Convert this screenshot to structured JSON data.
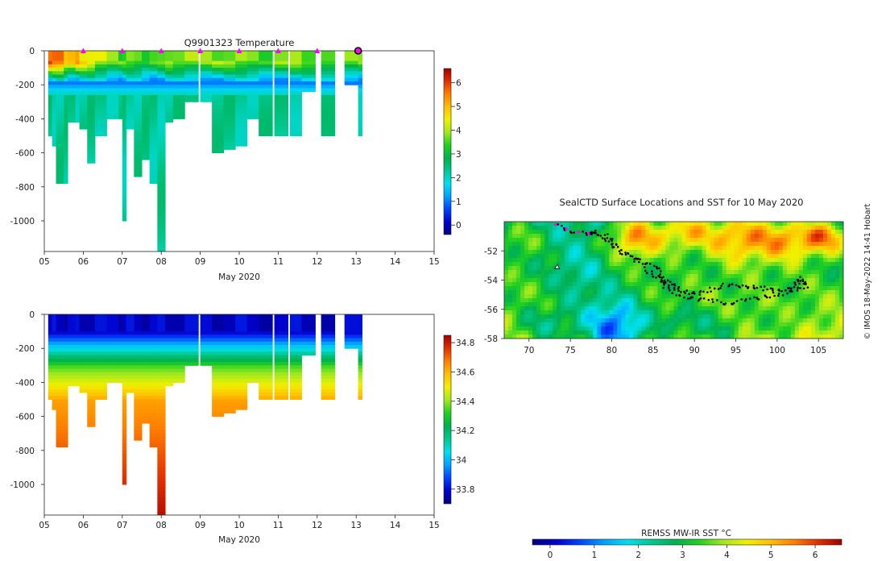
{
  "temperature_panel": {
    "title": "Q9901323  Temperature",
    "xlabel": "May 2020",
    "x_ticks": [
      "05",
      "06",
      "07",
      "08",
      "09",
      "10",
      "11",
      "12",
      "13",
      "14",
      "15"
    ],
    "y_ticks": [
      "0",
      "-200",
      "-400",
      "-600",
      "-800",
      "-1000"
    ],
    "colorbar_ticks": [
      "0",
      "1",
      "2",
      "3",
      "4",
      "5",
      "6"
    ]
  },
  "salinity_panel": {
    "xlabel": "May 2020",
    "x_ticks": [
      "05",
      "06",
      "07",
      "08",
      "09",
      "10",
      "11",
      "12",
      "13",
      "14",
      "15"
    ],
    "y_ticks": [
      "0",
      "-200",
      "-400",
      "-600",
      "-800",
      "-1000"
    ],
    "colorbar_ticks": [
      "33.8",
      "34",
      "34.2",
      "34.4",
      "34.6",
      "34.8"
    ]
  },
  "map_panel": {
    "title": "SealCTD Surface Locations and SST for 10 May 2020",
    "x_ticks": [
      "70",
      "75",
      "80",
      "85",
      "90",
      "95",
      "100",
      "105"
    ],
    "y_ticks": [
      "-52",
      "-54",
      "-56",
      "-58"
    ],
    "colorbar_label": "REMSS MW-IR SST °C",
    "colorbar_ticks": [
      "0",
      "1",
      "2",
      "3",
      "4",
      "5",
      "6"
    ]
  },
  "credit": "© IMOS 18-May-2022 14:41 Hobart",
  "colors": {
    "colormap": [
      "#00007f",
      "#0000cd",
      "#0044ff",
      "#00a0ff",
      "#00e0f0",
      "#00c890",
      "#00b050",
      "#20d020",
      "#a0e820",
      "#f0f000",
      "#ffc000",
      "#ff8000",
      "#e03000",
      "#a00000"
    ],
    "surface_marker": "#ff00ff",
    "track": "#000000"
  },
  "chart_data": [
    {
      "type": "heatmap",
      "title": "Q9901323  Temperature",
      "xlabel": "May 2020",
      "ylabel": "",
      "xlim": [
        5,
        15
      ],
      "ylim": [
        -1180,
        0
      ],
      "clim": [
        -0.4,
        6.6
      ],
      "surface_markers_day": [
        6,
        7,
        8,
        9,
        10,
        11,
        12
      ],
      "profiles": [
        {
          "day": 5.1,
          "max_depth": -500,
          "surf": 5.6
        },
        {
          "day": 5.2,
          "max_depth": -560,
          "surf": 5.4
        },
        {
          "day": 5.3,
          "max_depth": -780,
          "surf": 5.8
        },
        {
          "day": 5.5,
          "max_depth": -780,
          "surf": 5.2
        },
        {
          "day": 5.6,
          "max_depth": -410,
          "surf": 4.9
        },
        {
          "day": 5.8,
          "max_depth": -410,
          "surf": 5.0
        },
        {
          "day": 5.9,
          "max_depth": -460,
          "surf": 4.6
        },
        {
          "day": 6.1,
          "max_depth": -660,
          "surf": 4.6
        },
        {
          "day": 6.3,
          "max_depth": -500,
          "surf": 4.2
        },
        {
          "day": 6.6,
          "max_depth": -400,
          "surf": 3.8
        },
        {
          "day": 6.9,
          "max_depth": -400,
          "surf": 3.5
        },
        {
          "day": 7.0,
          "max_depth": -1000,
          "surf": 3.4
        },
        {
          "day": 7.1,
          "max_depth": -450,
          "surf": 3.5
        },
        {
          "day": 7.3,
          "max_depth": -740,
          "surf": 3.7
        },
        {
          "day": 7.5,
          "max_depth": -630,
          "surf": 3.5
        },
        {
          "day": 7.7,
          "max_depth": -780,
          "surf": 3.4
        },
        {
          "day": 7.9,
          "max_depth": -1180,
          "surf": 3.3
        },
        {
          "day": 8.1,
          "max_depth": -420,
          "surf": 3.8
        },
        {
          "day": 8.3,
          "max_depth": -400,
          "surf": 3.9
        },
        {
          "day": 8.6,
          "max_depth": -300,
          "surf": 3.9
        },
        {
          "day": 9.0,
          "max_depth": -300,
          "surf": 3.8
        },
        {
          "day": 9.3,
          "max_depth": -600,
          "surf": 3.8
        },
        {
          "day": 9.6,
          "max_depth": -580,
          "surf": 3.7
        },
        {
          "day": 9.9,
          "max_depth": -550,
          "surf": 3.7
        },
        {
          "day": 10.2,
          "max_depth": -400,
          "surf": 3.8
        },
        {
          "day": 10.5,
          "max_depth": -500,
          "surf": 3.6
        },
        {
          "day": 10.9,
          "max_depth": -500,
          "surf": 3.7
        },
        {
          "day": 11.3,
          "max_depth": -500,
          "surf": 3.7
        },
        {
          "day": 11.6,
          "max_depth": -240,
          "surf": 3.6
        },
        {
          "day": 12.1,
          "max_depth": -500,
          "surf": 3.8
        },
        {
          "day": 12.7,
          "max_depth": -200,
          "surf": 3.7
        },
        {
          "day": 13.05,
          "max_depth": -500,
          "surf": 3.6
        }
      ]
    },
    {
      "type": "heatmap",
      "title": "",
      "xlabel": "May 2020",
      "ylabel": "",
      "xlim": [
        5,
        15
      ],
      "ylim": [
        -1180,
        0
      ],
      "clim": [
        33.7,
        34.85
      ]
    },
    {
      "type": "heatmap",
      "title": "SealCTD Surface Locations and SST for 10 May 2020",
      "xlabel": "",
      "ylabel": "",
      "xlim": [
        67,
        108
      ],
      "ylim": [
        -58,
        -50
      ],
      "clim": [
        -0.4,
        6.6
      ],
      "colorbar_label": "REMSS MW-IR SST °C",
      "track": [
        [
          73.5,
          -50.3
        ],
        [
          75,
          -50.6
        ],
        [
          77,
          -50.9
        ],
        [
          78,
          -50.7
        ],
        [
          79.5,
          -51.0
        ],
        [
          80.5,
          -51.6
        ],
        [
          82,
          -52.2
        ],
        [
          84,
          -52.8
        ],
        [
          85.5,
          -53.2
        ],
        [
          86,
          -53.8
        ],
        [
          87,
          -54.3
        ],
        [
          88,
          -54.6
        ],
        [
          89,
          -54.8
        ],
        [
          90.5,
          -55.0
        ],
        [
          92,
          -54.6
        ],
        [
          94,
          -54.3
        ],
        [
          95.5,
          -54.5
        ],
        [
          97,
          -54.4
        ],
        [
          98.5,
          -54.6
        ],
        [
          100,
          -54.8
        ],
        [
          101.5,
          -54.5
        ],
        [
          102.5,
          -54.2
        ],
        [
          103,
          -53.9
        ],
        [
          103.5,
          -54.4
        ],
        [
          102,
          -54.8
        ],
        [
          100,
          -55.0
        ],
        [
          98,
          -55.2
        ],
        [
          96,
          -55.4
        ],
        [
          94,
          -55.6
        ],
        [
          92,
          -55.4
        ],
        [
          90,
          -55.3
        ],
        [
          88,
          -55.0
        ],
        [
          86.5,
          -54.5
        ],
        [
          86,
          -53.9
        ],
        [
          84.5,
          -53.4
        ],
        [
          82.5,
          -52.6
        ],
        [
          80.5,
          -51.8
        ],
        [
          79,
          -51.2
        ],
        [
          77.5,
          -50.6
        ]
      ],
      "surface_points": [
        [
          73.2,
          -50.2
        ],
        [
          74.5,
          -50.5
        ],
        [
          76,
          -50.7
        ],
        [
          77.2,
          -50.8
        ]
      ],
      "float_position": [
        73.4,
        -53.1
      ]
    }
  ]
}
